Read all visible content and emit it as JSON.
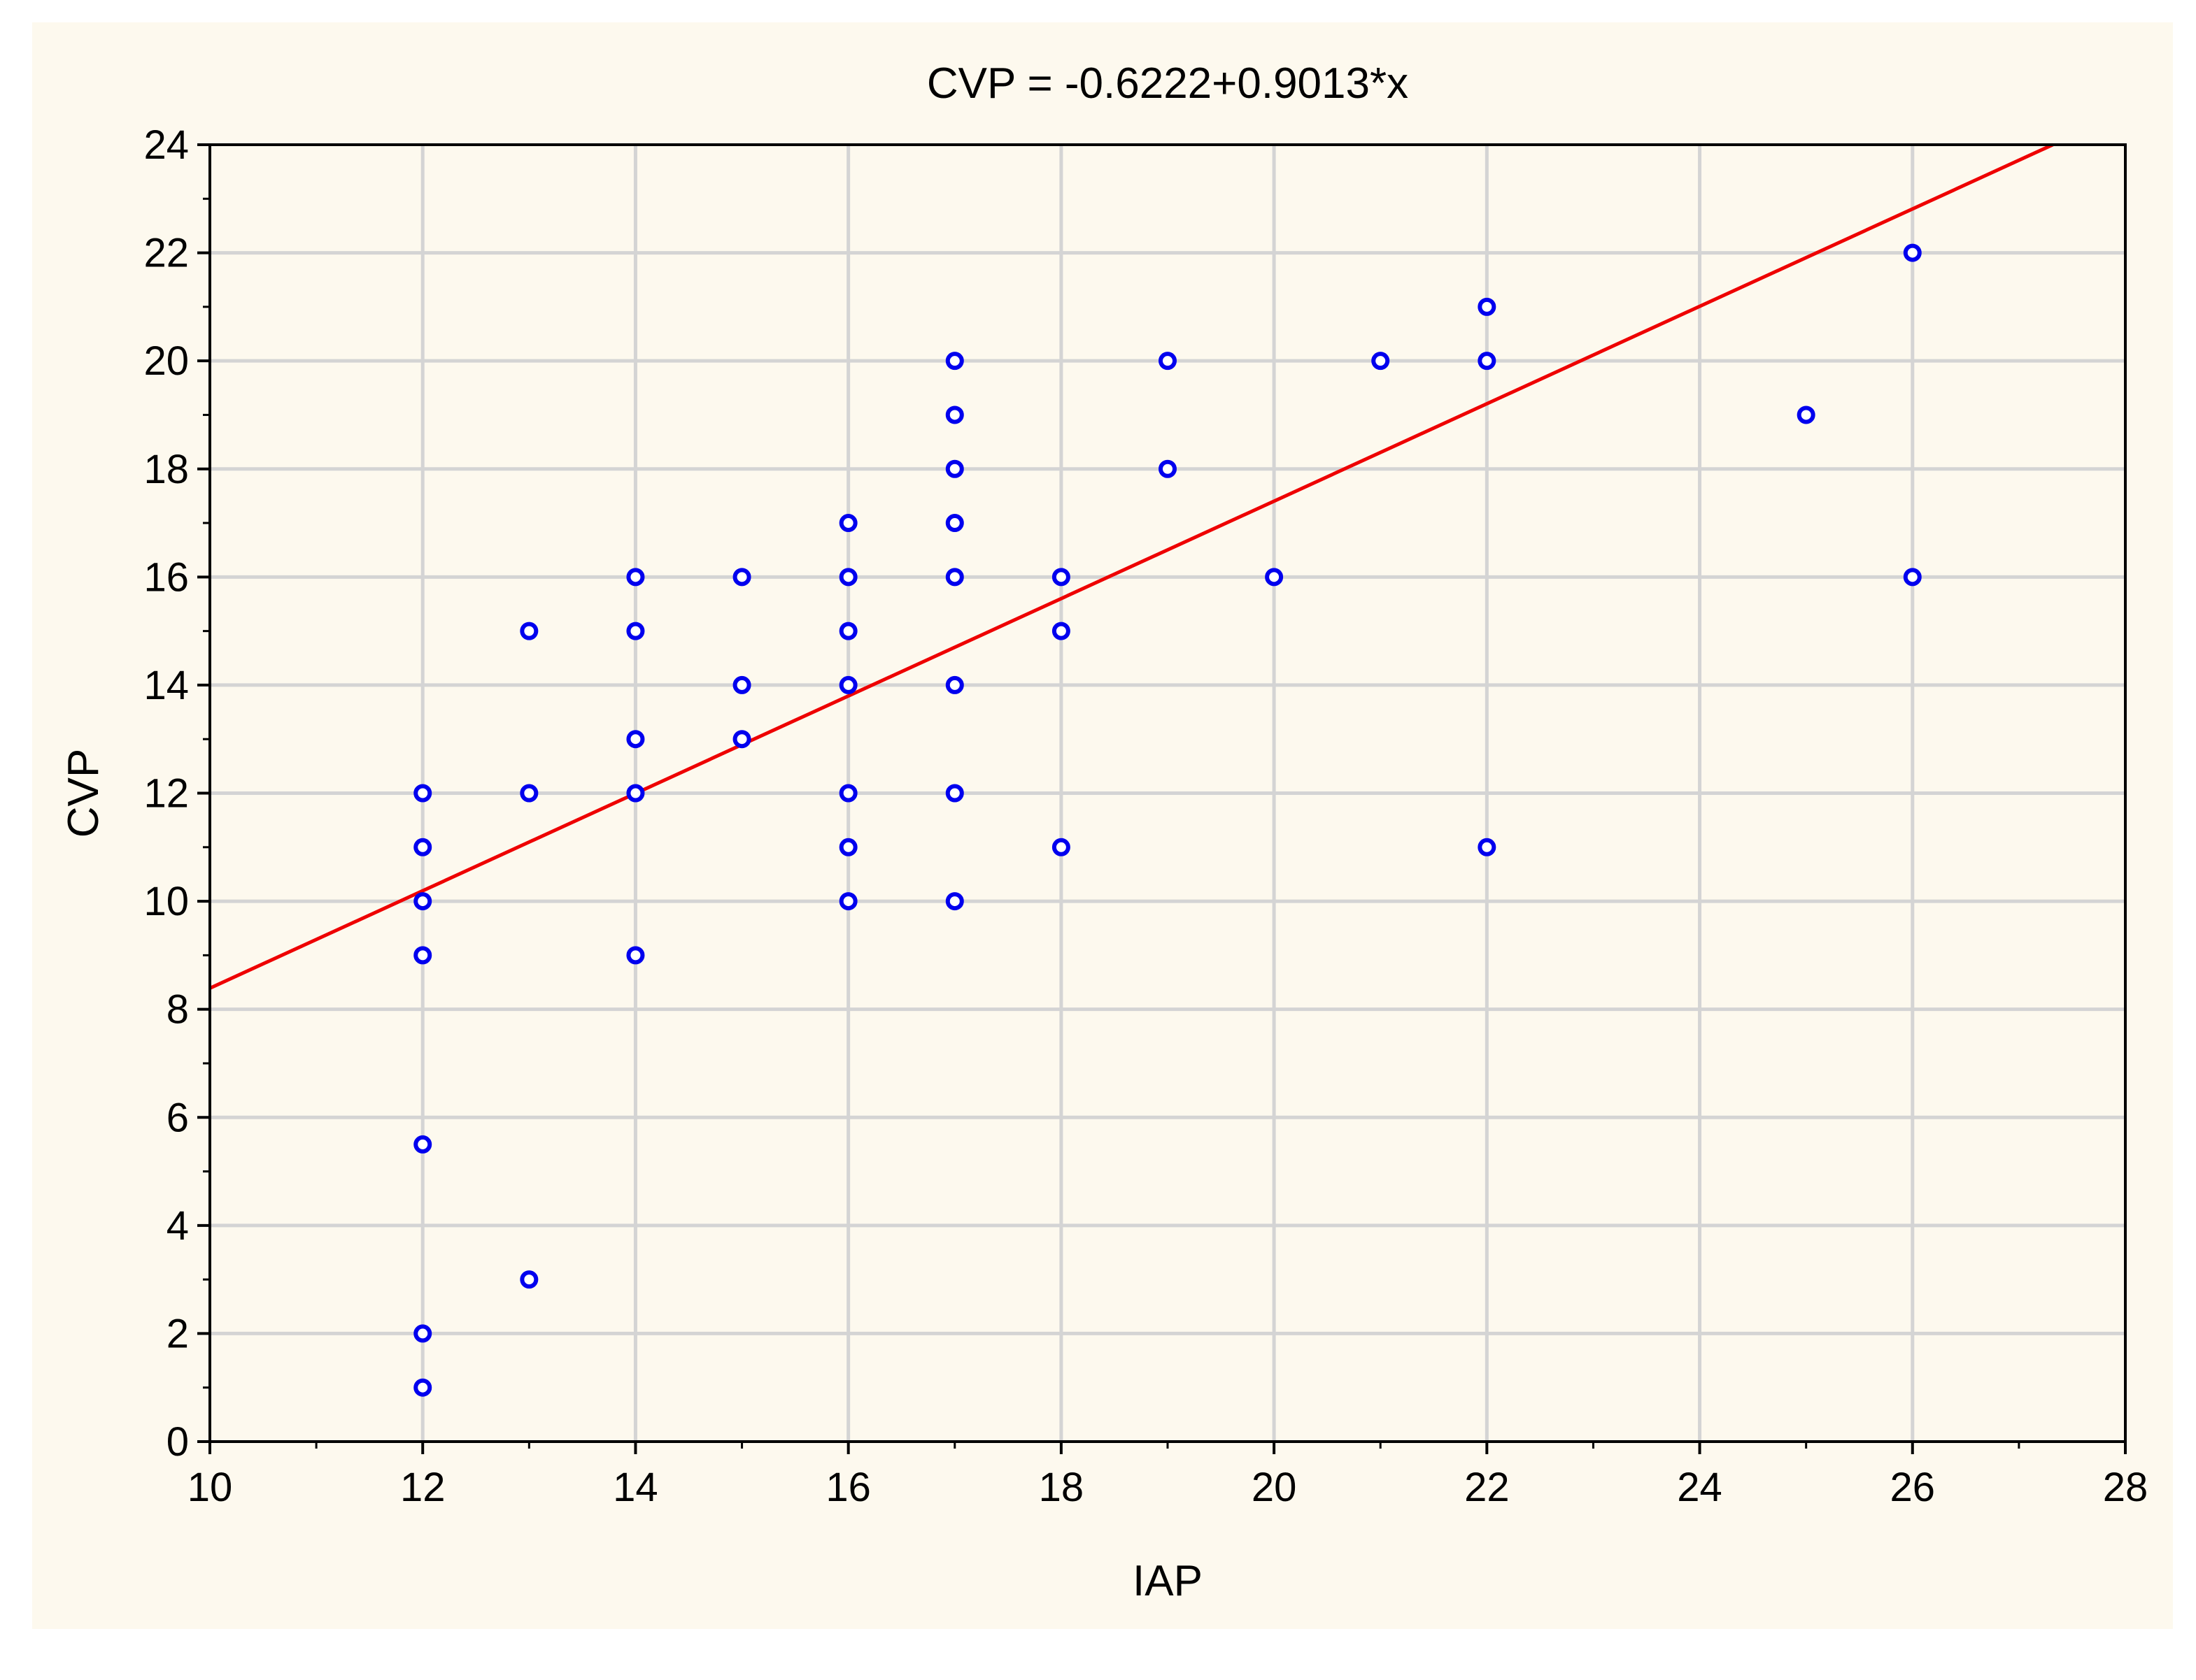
{
  "chart_data": {
    "type": "scatter",
    "title": "CVP = -0.6222+0.9013*x",
    "xlabel": "IAP",
    "ylabel": "CVP",
    "xlim": [
      10,
      28
    ],
    "ylim": [
      0,
      24
    ],
    "x_ticks": [
      "10",
      "12",
      "14",
      "16",
      "18",
      "20",
      "22",
      "24",
      "26",
      "28"
    ],
    "y_ticks": [
      "0",
      "2",
      "4",
      "6",
      "8",
      "10",
      "12",
      "14",
      "16",
      "18",
      "20",
      "22",
      "24"
    ],
    "grid": true,
    "point_color": "#0000ee",
    "fit_line_color": "#ee0000",
    "fit_line": {
      "intercept": -0.6222,
      "slope": 0.9013
    },
    "points": [
      {
        "x": 12,
        "y": 12
      },
      {
        "x": 12,
        "y": 11
      },
      {
        "x": 12,
        "y": 10
      },
      {
        "x": 12,
        "y": 9
      },
      {
        "x": 12,
        "y": 5.5
      },
      {
        "x": 12,
        "y": 2
      },
      {
        "x": 12,
        "y": 1
      },
      {
        "x": 13,
        "y": 15
      },
      {
        "x": 13,
        "y": 12
      },
      {
        "x": 13,
        "y": 3
      },
      {
        "x": 14,
        "y": 16
      },
      {
        "x": 14,
        "y": 15
      },
      {
        "x": 14,
        "y": 13
      },
      {
        "x": 14,
        "y": 12
      },
      {
        "x": 14,
        "y": 9
      },
      {
        "x": 15,
        "y": 16
      },
      {
        "x": 15,
        "y": 14
      },
      {
        "x": 15,
        "y": 13
      },
      {
        "x": 16,
        "y": 17
      },
      {
        "x": 16,
        "y": 16
      },
      {
        "x": 16,
        "y": 15
      },
      {
        "x": 16,
        "y": 14
      },
      {
        "x": 16,
        "y": 12
      },
      {
        "x": 16,
        "y": 11
      },
      {
        "x": 16,
        "y": 10
      },
      {
        "x": 17,
        "y": 20
      },
      {
        "x": 17,
        "y": 19
      },
      {
        "x": 17,
        "y": 18
      },
      {
        "x": 17,
        "y": 17
      },
      {
        "x": 17,
        "y": 16
      },
      {
        "x": 17,
        "y": 14
      },
      {
        "x": 17,
        "y": 12
      },
      {
        "x": 17,
        "y": 10
      },
      {
        "x": 18,
        "y": 16
      },
      {
        "x": 18,
        "y": 15
      },
      {
        "x": 18,
        "y": 11
      },
      {
        "x": 19,
        "y": 20
      },
      {
        "x": 19,
        "y": 18
      },
      {
        "x": 20,
        "y": 16
      },
      {
        "x": 21,
        "y": 20
      },
      {
        "x": 22,
        "y": 21
      },
      {
        "x": 22,
        "y": 20
      },
      {
        "x": 22,
        "y": 11
      },
      {
        "x": 25,
        "y": 19
      },
      {
        "x": 26,
        "y": 22
      },
      {
        "x": 26,
        "y": 16
      }
    ]
  }
}
